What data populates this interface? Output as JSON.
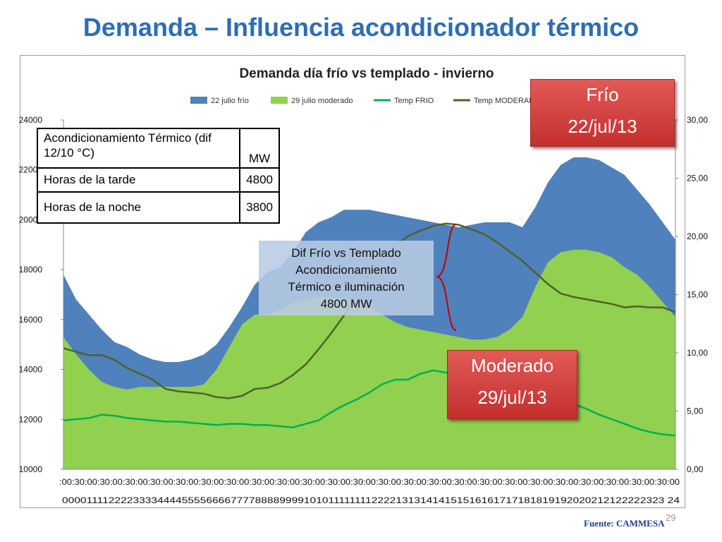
{
  "slide": {
    "title": "Demanda – Influencia acondicionador térmico",
    "source": "Fuente: CAMMESA",
    "page_number": "29"
  },
  "table": {
    "header": [
      "Acondicionamiento Térmico (dif 12/10 °C)",
      "MW"
    ],
    "rows": [
      [
        "Horas de la tarde",
        "4800"
      ],
      [
        "Horas de la noche",
        "3800"
      ]
    ]
  },
  "callouts": {
    "cold": {
      "line1": "Frío",
      "line2": "22/jul/13"
    },
    "moderate": {
      "line1": "Moderado",
      "line2": "29/jul/13"
    },
    "difference_lines": [
      "Dif Frío vs Templado",
      "Acondicionamiento",
      "Térmico e iluminación",
      "4800 MW"
    ]
  },
  "colors": {
    "cold_area": "#4F81BD",
    "moderate_area": "#92D050",
    "temp_cold": "#00B050",
    "temp_moderate": "#4F6228",
    "brace": "#C00000",
    "title": "#2E6DB4"
  },
  "chart_data": {
    "type": "area",
    "title": "Demanda día frío vs templado - invierno",
    "ylim": [
      10000,
      24000
    ],
    "y_ticks": [
      "10000",
      "12000",
      "14000",
      "16000",
      "18000",
      "20000",
      "22000",
      "24000"
    ],
    "y2lim": [
      0,
      30
    ],
    "y2_ticks": [
      "0,00",
      "5,00",
      "10,00",
      "15,00",
      "20,00",
      "25,00",
      "30,00"
    ],
    "x_hours": [
      0,
      0.5,
      1,
      1.5,
      2,
      2.5,
      3,
      3.5,
      4,
      4.5,
      5,
      5.5,
      6,
      6.5,
      7,
      7.5,
      8,
      8.5,
      9,
      9.5,
      10,
      10.5,
      11,
      11.5,
      12,
      12.5,
      13,
      13.5,
      14,
      14.5,
      15,
      15.5,
      16,
      16.5,
      17,
      17.5,
      18,
      18.5,
      19,
      19.5,
      20,
      20.5,
      21,
      21.5,
      22,
      22.5,
      23,
      23.5,
      24
    ],
    "x_tick_top": ":00:30:00:30:00:30:00:30:00:30:00:30:00:30:00:30:00:30:00:30:00:30:00:30:00:30:00:30:00:30:00:30:00:30:00:30:00:30:00:30:00:30:00:30:00:30:00:30:00",
    "x_tick_bottom": "0000111122223333444455556666777788889999101011111111222213131414151516161717181819192020212122222323 24",
    "series": [
      {
        "name": "22 julio frío",
        "kind": "area",
        "values": [
          17800,
          16800,
          16200,
          15600,
          15100,
          14900,
          14600,
          14400,
          14300,
          14300,
          14400,
          14600,
          15000,
          15700,
          16500,
          17400,
          17900,
          18100,
          18700,
          19500,
          19900,
          20100,
          20400,
          20400,
          20400,
          20300,
          20200,
          20100,
          20000,
          19900,
          19800,
          19700,
          19800,
          19900,
          19900,
          19900,
          19700,
          20500,
          21500,
          22200,
          22500,
          22500,
          22400,
          22100,
          21800,
          21200,
          20600,
          19900,
          19200
        ]
      },
      {
        "name": "29 julio moderado",
        "kind": "area",
        "values": [
          15300,
          14600,
          14000,
          13500,
          13300,
          13200,
          13300,
          13300,
          13300,
          13300,
          13300,
          13400,
          14000,
          14900,
          15800,
          16200,
          16200,
          16400,
          16700,
          16800,
          16900,
          16900,
          16800,
          16700,
          16500,
          16200,
          15900,
          15700,
          15600,
          15500,
          15400,
          15300,
          15200,
          15200,
          15300,
          15600,
          16100,
          17300,
          18300,
          18700,
          18800,
          18800,
          18700,
          18500,
          18100,
          17800,
          17300,
          16700,
          16100
        ]
      },
      {
        "name": "Temp FRIO",
        "kind": "line",
        "axis": "right",
        "values": [
          4.2,
          4.3,
          4.4,
          4.7,
          4.6,
          4.4,
          4.3,
          4.2,
          4.1,
          4.1,
          4.0,
          3.9,
          3.8,
          3.9,
          3.9,
          3.8,
          3.8,
          3.7,
          3.6,
          3.9,
          4.2,
          4.9,
          5.5,
          6.0,
          6.6,
          7.3,
          7.7,
          7.7,
          8.2,
          8.5,
          8.3,
          8.0,
          7.5,
          7.1,
          6.9,
          6.7,
          6.6,
          6.5,
          6.3,
          6.0,
          5.6,
          5.2,
          4.7,
          4.3,
          3.9,
          3.5,
          3.2,
          3.0,
          2.9
        ]
      },
      {
        "name": "Temp MODERADO",
        "kind": "line",
        "axis": "right",
        "values": [
          10.4,
          10.1,
          9.8,
          9.8,
          9.4,
          8.7,
          8.2,
          7.7,
          6.9,
          6.7,
          6.6,
          6.5,
          6.2,
          6.1,
          6.3,
          6.9,
          7.0,
          7.4,
          8.1,
          9.0,
          10.3,
          11.7,
          13.2,
          15.1,
          16.8,
          18.1,
          19.2,
          20.0,
          20.5,
          20.9,
          21.1,
          21.0,
          20.6,
          20.2,
          19.5,
          18.7,
          17.9,
          16.9,
          15.9,
          15.1,
          14.8,
          14.6,
          14.4,
          14.2,
          13.9,
          14.0,
          13.9,
          13.9,
          13.5
        ]
      }
    ],
    "legend_position": "top",
    "grid": false
  }
}
